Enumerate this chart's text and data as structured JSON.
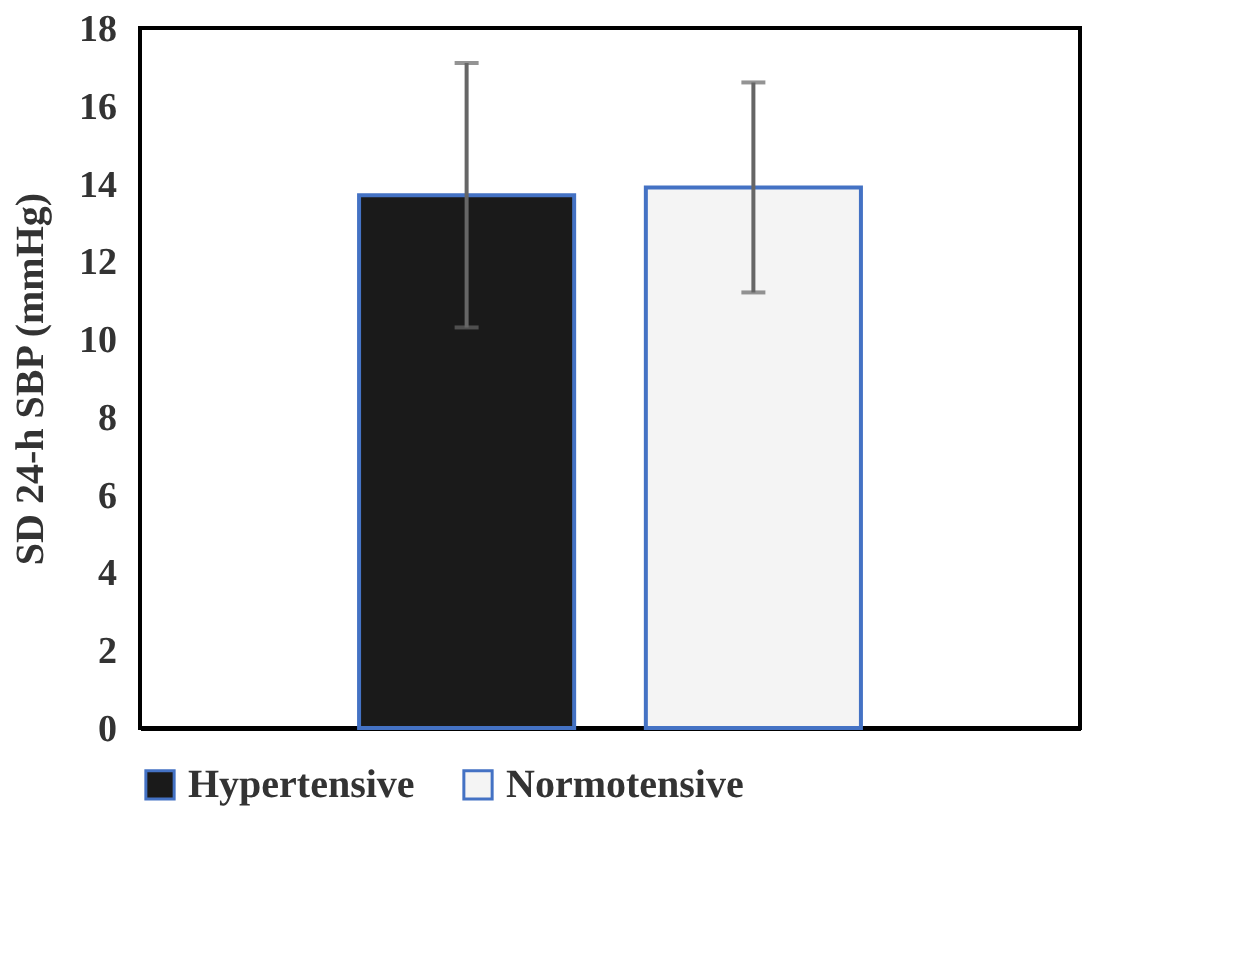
{
  "chart_data": {
    "type": "bar",
    "ylabel": "SD 24-h SBP (mmHg)",
    "categories": [
      null
    ],
    "series": [
      {
        "name": "Hypertensive",
        "color": "#1a1a1a",
        "values": [
          13.7
        ],
        "errors": [
          3.4
        ]
      },
      {
        "name": "Normotensive",
        "color": "#f4f4f4",
        "values": [
          13.9
        ],
        "errors": [
          2.7
        ]
      }
    ],
    "ylim": [
      0,
      18
    ],
    "yticks": [
      0,
      2,
      4,
      6,
      8,
      10,
      12,
      14,
      16,
      18
    ],
    "grid": false,
    "legend": "bottom",
    "tick_labels": "y"
  }
}
